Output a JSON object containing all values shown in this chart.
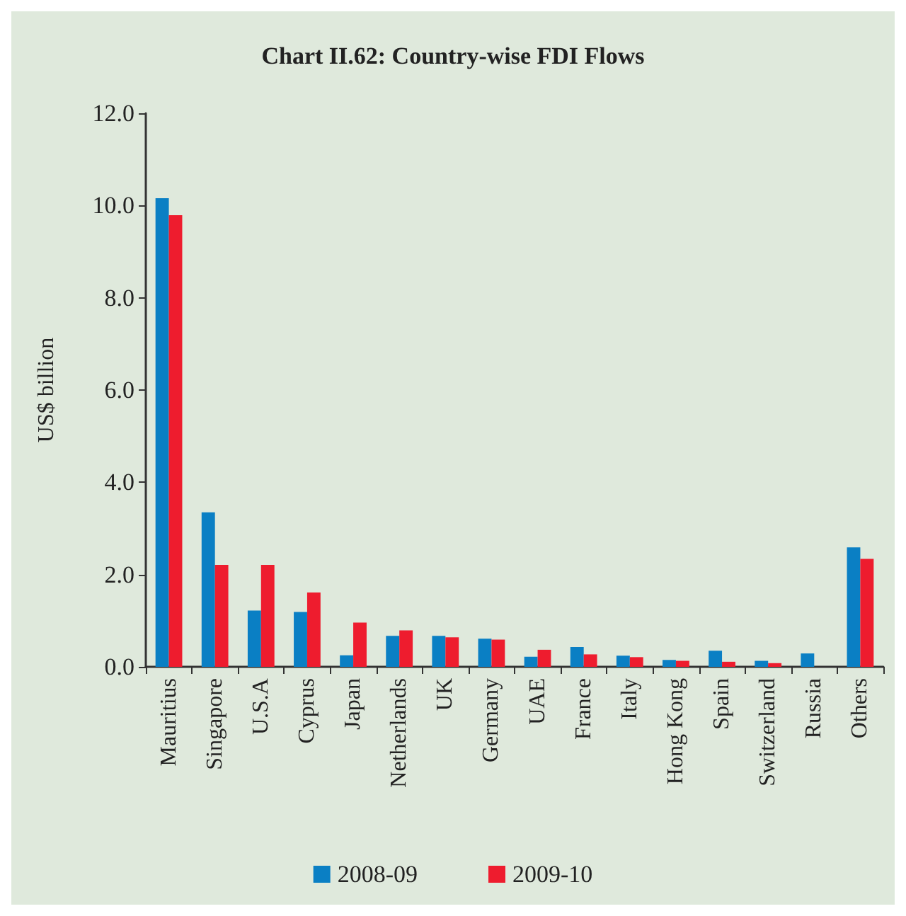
{
  "chart_data": {
    "type": "bar",
    "title": "Chart II.62: Country-wise FDI Flows",
    "ylabel": "US$ billion",
    "categories": [
      "Mauritius",
      "Singapore",
      "U.S.A",
      "Cyprus",
      "Japan",
      "Netherlands",
      "UK",
      "Germany",
      "UAE",
      "France",
      "Italy",
      "Hong Kong",
      "Spain",
      "Switzerland",
      "Russia",
      "Others"
    ],
    "series": [
      {
        "name": "2008-09",
        "color": "#0a7fc4",
        "values": [
          10.16,
          3.35,
          1.22,
          1.19,
          0.25,
          0.67,
          0.67,
          0.61,
          0.22,
          0.43,
          0.24,
          0.15,
          0.35,
          0.13,
          0.29,
          2.59
        ]
      },
      {
        "name": "2009-10",
        "color": "#ee1c2e",
        "values": [
          9.79,
          2.21,
          2.21,
          1.61,
          0.96,
          0.79,
          0.64,
          0.59,
          0.37,
          0.27,
          0.21,
          0.13,
          0.11,
          0.08,
          null,
          2.34
        ]
      }
    ],
    "ylim": [
      0,
      12
    ],
    "yticks": [
      {
        "value": 0,
        "label": "0.0"
      },
      {
        "value": 2,
        "label": "2.0"
      },
      {
        "value": 4,
        "label": "4.0"
      },
      {
        "value": 6,
        "label": "6.0"
      },
      {
        "value": 8,
        "label": "8.0"
      },
      {
        "value": 10,
        "label": "10.0"
      },
      {
        "value": 12,
        "label": "12.0"
      }
    ],
    "grid": false,
    "legend": "bottom"
  }
}
